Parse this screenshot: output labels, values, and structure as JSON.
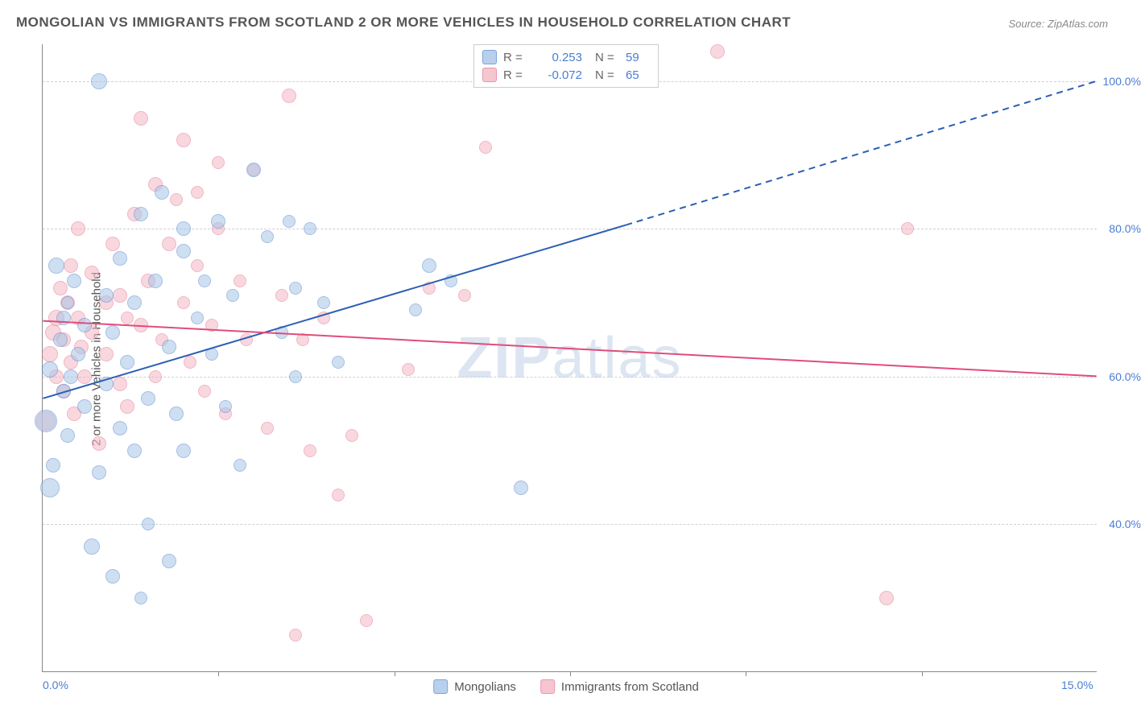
{
  "title": "MONGOLIAN VS IMMIGRANTS FROM SCOTLAND 2 OR MORE VEHICLES IN HOUSEHOLD CORRELATION CHART",
  "source": "Source: ZipAtlas.com",
  "ylabel": "2 or more Vehicles in Household",
  "watermark_bold": "ZIP",
  "watermark_light": "atlas",
  "chart": {
    "type": "scatter",
    "xlim": [
      0,
      15
    ],
    "ylim": [
      20,
      105
    ],
    "background_color": "#ffffff",
    "grid_color": "#d0d0d0",
    "axis_color": "#888888",
    "tick_label_color": "#4a7dd4",
    "tick_fontsize": 14,
    "grid_y_values": [
      40,
      60,
      80,
      100
    ],
    "y_ticks": [
      {
        "val": 40,
        "label": "40.0%"
      },
      {
        "val": 60,
        "label": "60.0%"
      },
      {
        "val": 80,
        "label": "80.0%"
      },
      {
        "val": 100,
        "label": "100.0%"
      }
    ],
    "x_ticks": [
      {
        "val": 0,
        "label": "0.0%"
      },
      {
        "val": 15,
        "label": "15.0%"
      }
    ],
    "x_tick_marks": [
      2.5,
      5.0,
      7.5,
      10.0,
      12.5
    ],
    "series": {
      "mongolians": {
        "label": "Mongolians",
        "fill_color": "#a8c5e8",
        "stroke_color": "#5b8dd1",
        "fill_opacity": 0.55,
        "marker_radius_range": [
          7,
          14
        ],
        "R": "0.253",
        "N": "59",
        "trend": {
          "color": "#2b5fb3",
          "width": 2,
          "solid_from": [
            0,
            57
          ],
          "solid_to": [
            8.3,
            80.5
          ],
          "dash_from": [
            8.3,
            80.5
          ],
          "dash_to": [
            15,
            100
          ]
        },
        "points": [
          {
            "x": 0.05,
            "y": 54,
            "r": 14
          },
          {
            "x": 0.1,
            "y": 45,
            "r": 12
          },
          {
            "x": 0.1,
            "y": 61,
            "r": 10
          },
          {
            "x": 0.15,
            "y": 48,
            "r": 9
          },
          {
            "x": 0.2,
            "y": 75,
            "r": 10
          },
          {
            "x": 0.25,
            "y": 65,
            "r": 9
          },
          {
            "x": 0.3,
            "y": 68,
            "r": 9
          },
          {
            "x": 0.3,
            "y": 58,
            "r": 9
          },
          {
            "x": 0.35,
            "y": 70,
            "r": 8
          },
          {
            "x": 0.35,
            "y": 52,
            "r": 9
          },
          {
            "x": 0.4,
            "y": 60,
            "r": 9
          },
          {
            "x": 0.45,
            "y": 73,
            "r": 9
          },
          {
            "x": 0.5,
            "y": 63,
            "r": 9
          },
          {
            "x": 0.6,
            "y": 56,
            "r": 9
          },
          {
            "x": 0.6,
            "y": 67,
            "r": 9
          },
          {
            "x": 0.7,
            "y": 37,
            "r": 10
          },
          {
            "x": 0.8,
            "y": 47,
            "r": 9
          },
          {
            "x": 0.8,
            "y": 100,
            "r": 10
          },
          {
            "x": 0.9,
            "y": 59,
            "r": 9
          },
          {
            "x": 0.9,
            "y": 71,
            "r": 9
          },
          {
            "x": 1.0,
            "y": 33,
            "r": 9
          },
          {
            "x": 1.0,
            "y": 66,
            "r": 9
          },
          {
            "x": 1.1,
            "y": 76,
            "r": 9
          },
          {
            "x": 1.1,
            "y": 53,
            "r": 9
          },
          {
            "x": 1.2,
            "y": 62,
            "r": 9
          },
          {
            "x": 1.3,
            "y": 70,
            "r": 9
          },
          {
            "x": 1.3,
            "y": 50,
            "r": 9
          },
          {
            "x": 1.4,
            "y": 30,
            "r": 8
          },
          {
            "x": 1.4,
            "y": 82,
            "r": 9
          },
          {
            "x": 1.5,
            "y": 57,
            "r": 9
          },
          {
            "x": 1.5,
            "y": 40,
            "r": 8
          },
          {
            "x": 1.6,
            "y": 73,
            "r": 9
          },
          {
            "x": 1.7,
            "y": 85,
            "r": 9
          },
          {
            "x": 1.8,
            "y": 64,
            "r": 9
          },
          {
            "x": 1.8,
            "y": 35,
            "r": 9
          },
          {
            "x": 1.9,
            "y": 55,
            "r": 9
          },
          {
            "x": 2.0,
            "y": 77,
            "r": 9
          },
          {
            "x": 2.0,
            "y": 80,
            "r": 9
          },
          {
            "x": 2.0,
            "y": 50,
            "r": 9
          },
          {
            "x": 2.2,
            "y": 68,
            "r": 8
          },
          {
            "x": 2.3,
            "y": 73,
            "r": 8
          },
          {
            "x": 2.4,
            "y": 63,
            "r": 8
          },
          {
            "x": 2.5,
            "y": 81,
            "r": 9
          },
          {
            "x": 2.6,
            "y": 56,
            "r": 8
          },
          {
            "x": 2.7,
            "y": 71,
            "r": 8
          },
          {
            "x": 2.8,
            "y": 48,
            "r": 8
          },
          {
            "x": 3.0,
            "y": 88,
            "r": 9
          },
          {
            "x": 3.2,
            "y": 79,
            "r": 8
          },
          {
            "x": 3.4,
            "y": 66,
            "r": 8
          },
          {
            "x": 3.5,
            "y": 81,
            "r": 8
          },
          {
            "x": 3.6,
            "y": 72,
            "r": 8
          },
          {
            "x": 3.6,
            "y": 60,
            "r": 8
          },
          {
            "x": 3.8,
            "y": 80,
            "r": 8
          },
          {
            "x": 4.0,
            "y": 70,
            "r": 8
          },
          {
            "x": 5.5,
            "y": 75,
            "r": 9
          },
          {
            "x": 5.8,
            "y": 73,
            "r": 8
          },
          {
            "x": 6.8,
            "y": 45,
            "r": 9
          },
          {
            "x": 5.3,
            "y": 69,
            "r": 8
          },
          {
            "x": 4.2,
            "y": 62,
            "r": 8
          }
        ]
      },
      "scotland": {
        "label": "Immigrants from Scotland",
        "fill_color": "#f5b8c5",
        "stroke_color": "#e57d97",
        "fill_opacity": 0.55,
        "marker_radius_range": [
          7,
          14
        ],
        "R": "-0.072",
        "N": "65",
        "trend": {
          "color": "#e04d7a",
          "width": 2,
          "solid_from": [
            0,
            67.5
          ],
          "solid_to": [
            15,
            60
          ]
        },
        "points": [
          {
            "x": 0.05,
            "y": 54,
            "r": 12
          },
          {
            "x": 0.1,
            "y": 63,
            "r": 10
          },
          {
            "x": 0.15,
            "y": 66,
            "r": 10
          },
          {
            "x": 0.2,
            "y": 68,
            "r": 10
          },
          {
            "x": 0.2,
            "y": 60,
            "r": 9
          },
          {
            "x": 0.25,
            "y": 72,
            "r": 9
          },
          {
            "x": 0.3,
            "y": 58,
            "r": 9
          },
          {
            "x": 0.3,
            "y": 65,
            "r": 9
          },
          {
            "x": 0.35,
            "y": 70,
            "r": 9
          },
          {
            "x": 0.4,
            "y": 62,
            "r": 9
          },
          {
            "x": 0.4,
            "y": 75,
            "r": 9
          },
          {
            "x": 0.45,
            "y": 55,
            "r": 9
          },
          {
            "x": 0.5,
            "y": 68,
            "r": 9
          },
          {
            "x": 0.5,
            "y": 80,
            "r": 9
          },
          {
            "x": 0.55,
            "y": 64,
            "r": 9
          },
          {
            "x": 0.6,
            "y": 60,
            "r": 9
          },
          {
            "x": 0.7,
            "y": 74,
            "r": 9
          },
          {
            "x": 0.7,
            "y": 66,
            "r": 9
          },
          {
            "x": 0.8,
            "y": 51,
            "r": 9
          },
          {
            "x": 0.9,
            "y": 70,
            "r": 9
          },
          {
            "x": 0.9,
            "y": 63,
            "r": 9
          },
          {
            "x": 1.0,
            "y": 78,
            "r": 9
          },
          {
            "x": 1.1,
            "y": 59,
            "r": 9
          },
          {
            "x": 1.1,
            "y": 71,
            "r": 9
          },
          {
            "x": 1.2,
            "y": 56,
            "r": 9
          },
          {
            "x": 1.3,
            "y": 82,
            "r": 9
          },
          {
            "x": 1.4,
            "y": 67,
            "r": 9
          },
          {
            "x": 1.4,
            "y": 95,
            "r": 9
          },
          {
            "x": 1.5,
            "y": 73,
            "r": 9
          },
          {
            "x": 1.6,
            "y": 60,
            "r": 8
          },
          {
            "x": 1.6,
            "y": 86,
            "r": 9
          },
          {
            "x": 1.7,
            "y": 65,
            "r": 8
          },
          {
            "x": 1.8,
            "y": 78,
            "r": 9
          },
          {
            "x": 1.9,
            "y": 84,
            "r": 8
          },
          {
            "x": 2.0,
            "y": 92,
            "r": 9
          },
          {
            "x": 2.0,
            "y": 70,
            "r": 8
          },
          {
            "x": 2.1,
            "y": 62,
            "r": 8
          },
          {
            "x": 2.2,
            "y": 75,
            "r": 8
          },
          {
            "x": 2.2,
            "y": 85,
            "r": 8
          },
          {
            "x": 2.4,
            "y": 67,
            "r": 8
          },
          {
            "x": 2.5,
            "y": 80,
            "r": 8
          },
          {
            "x": 2.5,
            "y": 89,
            "r": 8
          },
          {
            "x": 2.6,
            "y": 55,
            "r": 8
          },
          {
            "x": 2.8,
            "y": 73,
            "r": 8
          },
          {
            "x": 2.9,
            "y": 65,
            "r": 8
          },
          {
            "x": 3.0,
            "y": 88,
            "r": 8
          },
          {
            "x": 3.2,
            "y": 53,
            "r": 8
          },
          {
            "x": 3.4,
            "y": 71,
            "r": 8
          },
          {
            "x": 3.5,
            "y": 98,
            "r": 9
          },
          {
            "x": 3.6,
            "y": 25,
            "r": 8
          },
          {
            "x": 3.7,
            "y": 65,
            "r": 8
          },
          {
            "x": 3.8,
            "y": 50,
            "r": 8
          },
          {
            "x": 4.0,
            "y": 68,
            "r": 8
          },
          {
            "x": 4.2,
            "y": 44,
            "r": 8
          },
          {
            "x": 4.4,
            "y": 52,
            "r": 8
          },
          {
            "x": 4.6,
            "y": 27,
            "r": 8
          },
          {
            "x": 5.2,
            "y": 61,
            "r": 8
          },
          {
            "x": 5.5,
            "y": 72,
            "r": 8
          },
          {
            "x": 6.0,
            "y": 71,
            "r": 8
          },
          {
            "x": 6.3,
            "y": 91,
            "r": 8
          },
          {
            "x": 9.6,
            "y": 104,
            "r": 9
          },
          {
            "x": 12.0,
            "y": 30,
            "r": 9
          },
          {
            "x": 12.3,
            "y": 80,
            "r": 8
          },
          {
            "x": 2.3,
            "y": 58,
            "r": 8
          },
          {
            "x": 1.2,
            "y": 68,
            "r": 8
          }
        ]
      }
    }
  }
}
